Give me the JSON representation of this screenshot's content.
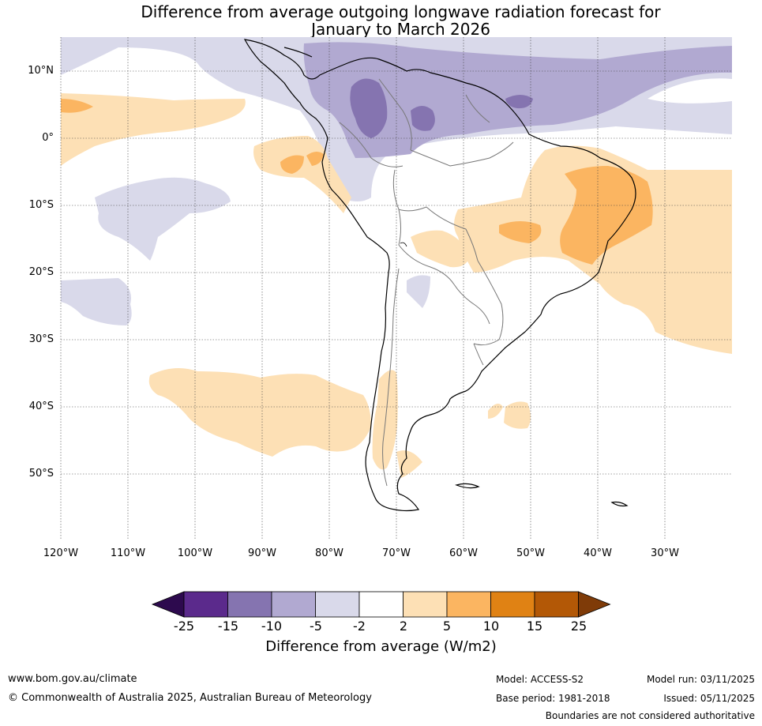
{
  "title": {
    "line1": "Difference from average outgoing longwave radiation forecast for",
    "line2": "January to March 2026"
  },
  "lat_labels": [
    "10°N",
    "0°",
    "10°S",
    "20°S",
    "30°S",
    "40°S",
    "50°S"
  ],
  "lon_labels": [
    "120°W",
    "110°W",
    "100°W",
    "90°W",
    "80°W",
    "70°W",
    "60°W",
    "50°W",
    "40°W",
    "30°W"
  ],
  "colorbar": {
    "ticks": [
      "-25",
      "-15",
      "-10",
      "-5",
      "-2",
      "2",
      "5",
      "10",
      "15",
      "25"
    ],
    "colors": [
      "#2d0a4e",
      "#5b2a8c",
      "#8574b0",
      "#b1a9d1",
      "#d9d9ea",
      "#ffffff",
      "#fde0b5",
      "#fbb561",
      "#e08214",
      "#b35806",
      "#7f3b08"
    ],
    "label": "Difference from average (W/m2)"
  },
  "footer": {
    "website": "www.bom.gov.au/climate",
    "copyright": "© Commonwealth of Australia 2025, Australian Bureau of Meteorology",
    "model": "Model: ACCESS-S2",
    "base_period": "Base period: 1981-2018",
    "model_run": "Model run: 03/11/2025",
    "issued": "Issued: 05/11/2025",
    "disclaimer": "Boundaries are not considered authoritative"
  }
}
